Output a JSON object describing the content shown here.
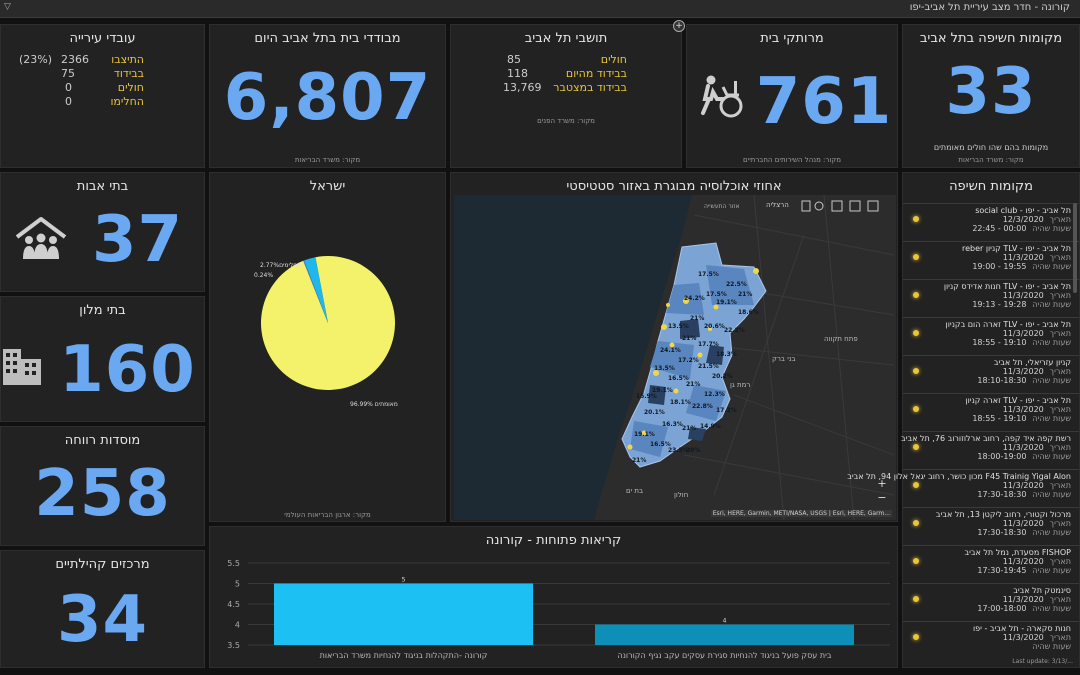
{
  "window": {
    "title": "קורונה - חדר מצב עיריית תל אביב-יפו"
  },
  "exposure_sites": {
    "title": "מקומות חשיפה בתל אביב",
    "value": "33",
    "subtitle": "מקומות בהם שהו חולים מאומתים",
    "source": "מקור: משרד הבריאות"
  },
  "homebound": {
    "title": "מרותקי בית",
    "value": "761",
    "source": "מקור: מנהל השירותים החברתיים",
    "icon": "wheelchair-icon"
  },
  "residents": {
    "title": "תושבי תל אביב",
    "rows": [
      {
        "label": "חולים",
        "value": "85"
      },
      {
        "label": "בבידוד מהיום",
        "value": "118"
      },
      {
        "label": "בבידוד במצטבר",
        "value": "13,769"
      }
    ],
    "source": "מקור: משרד הפנים"
  },
  "home_isolation": {
    "title": "מבודדי בית בתל אביב היום",
    "value": "6,807",
    "source": "מקור: משרד הבריאות"
  },
  "city_employees": {
    "title": "עובדי עירייה",
    "rows": [
      {
        "label": "התיצבו",
        "value": "2366",
        "pct": "(23%)"
      },
      {
        "label": "בבידוד",
        "value": "75",
        "pct": ""
      },
      {
        "label": "חולים",
        "value": "0",
        "pct": ""
      },
      {
        "label": "החלימו",
        "value": "0",
        "pct": ""
      }
    ]
  },
  "nursing_homes": {
    "title": "בתי אבות",
    "value": "37",
    "icon": "people-home-icon"
  },
  "hotels": {
    "title": "בתי מלון",
    "value": "160",
    "icon": "buildings-icon"
  },
  "welfare": {
    "title": "מוסדות רווחה",
    "value": "258"
  },
  "community_centers": {
    "title": "מרכזים קהילתיים",
    "value": "34"
  },
  "israel_pie": {
    "title": "ישראל",
    "source": "מקור: ארגון הבריאות העולמי",
    "slices": [
      {
        "label": "מאומתים 96.99%",
        "value": 96.99,
        "color": "#f3f26a"
      },
      {
        "label": "2.77%מחלימים",
        "value": 2.77,
        "color": "#1fb7ec"
      },
      {
        "label": "0.24%",
        "value": 0.24,
        "color": "#5b7bd6"
      }
    ]
  },
  "map": {
    "title": "אחוזי אוכלוסיה מבוגרת באזור סטטיסטי",
    "toolbar_labels": [
      "הרצליה",
      "אזור התעשייה"
    ],
    "place_labels": [
      "רמת גן",
      "בני ברק",
      "פתח תקווה",
      "חולון",
      "בת ים"
    ],
    "attribution": "Esri, HERE, Garmin, METI/NASA, USGS | Esri, HERE, Garm...",
    "zoom_in": "+",
    "zoom_out": "−",
    "pct_labels": [
      "17.5%",
      "22.5%",
      "21%",
      "17.5%",
      "24.2%",
      "19.1%",
      "18.6%",
      "21%",
      "13.5%",
      "20.6%",
      "22.2%",
      "21%",
      "17.7%",
      "24.1%",
      "18.3%",
      "17.2%",
      "13.5%",
      "21.5%",
      "20.2%",
      "16.5%",
      "21%",
      "19.1%",
      "12.3%",
      "15.9%",
      "18.1%",
      "22.8%",
      "17.2%",
      "20.1%",
      "16.3%",
      "21%",
      "19.1%",
      "14.9%",
      "16.5%",
      "23.5%",
      "21%",
      "20%"
    ]
  },
  "open_calls": {
    "title": "קריאות פתוחות - קורונה",
    "chart_data": {
      "type": "bar",
      "title": "קריאות פתוחות - קורונה",
      "categories": [
        "קורונה -התקהלות בניגוד להנחיות משרד הבריאות",
        "בית עסק פועל בניגוד להנחיות סגירת עסקים עקב נגיף הקורונה"
      ],
      "values": [
        5,
        4
      ],
      "data_labels": [
        "5",
        "4"
      ],
      "colors": [
        "#1cc0f2",
        "#0e8fb8"
      ],
      "ylim": [
        3.5,
        5.5
      ],
      "yticks": [
        "3.5",
        "4",
        "4.5",
        "5",
        "5.5"
      ]
    }
  },
  "exposure_list": {
    "title": "מקומות חשיפה",
    "date_label": "תאריך",
    "time_label": "שעות שהיה",
    "items": [
      {
        "name": "תל אביב - יפו - social club",
        "date": "12/3/2020",
        "hours": "22:45 - 00:00"
      },
      {
        "name": "תל אביב - יפו - TLV קניון reber",
        "date": "11/3/2020",
        "hours": "19:00 - 19:55"
      },
      {
        "name": "תל אביב - יפו - TLV חנות אדידס קניון",
        "date": "11/3/2020",
        "hours": "19:13 - 19:28"
      },
      {
        "name": "תל אביב - יפו - TLV זארה הום בקניון",
        "date": "11/3/2020",
        "hours": "18:55 - 19:10"
      },
      {
        "name": "קניון עזריאלי, תל אביב",
        "date": "11/3/2020",
        "hours": "18:10-18:30"
      },
      {
        "name": "תל אביב - יפו - TLV זארה קניון",
        "date": "11/3/2020",
        "hours": "18:55 - 19:10"
      },
      {
        "name": "רשת קפה איד קפה, רחוב ארלוזורוב 76, תל אביב",
        "date": "11/3/2020",
        "hours": "18:00-19:00"
      },
      {
        "name": "F45 Trainig Yigal Alon מכון כושר, רחוב יגאל אלון 94, תל אביב",
        "date": "11/3/2020",
        "hours": "17:30-18:30"
      },
      {
        "name": "מרכול וקטורי, רחוב ליקטן 13, תל אביב",
        "date": "11/3/2020",
        "hours": "17:30-18:30"
      },
      {
        "name": "FISHOP מסעדת, נמל תל אביב",
        "date": "11/3/2020",
        "hours": "17:30-19:45"
      },
      {
        "name": "סינמטק תל אביב",
        "date": "11/3/2020",
        "hours": "17:00-18:00"
      },
      {
        "name": "חנות סקארה - תל אביב - יפו",
        "date": "11/3/2020",
        "hours": ""
      }
    ],
    "last_update": "Last update: 3/13/..."
  }
}
